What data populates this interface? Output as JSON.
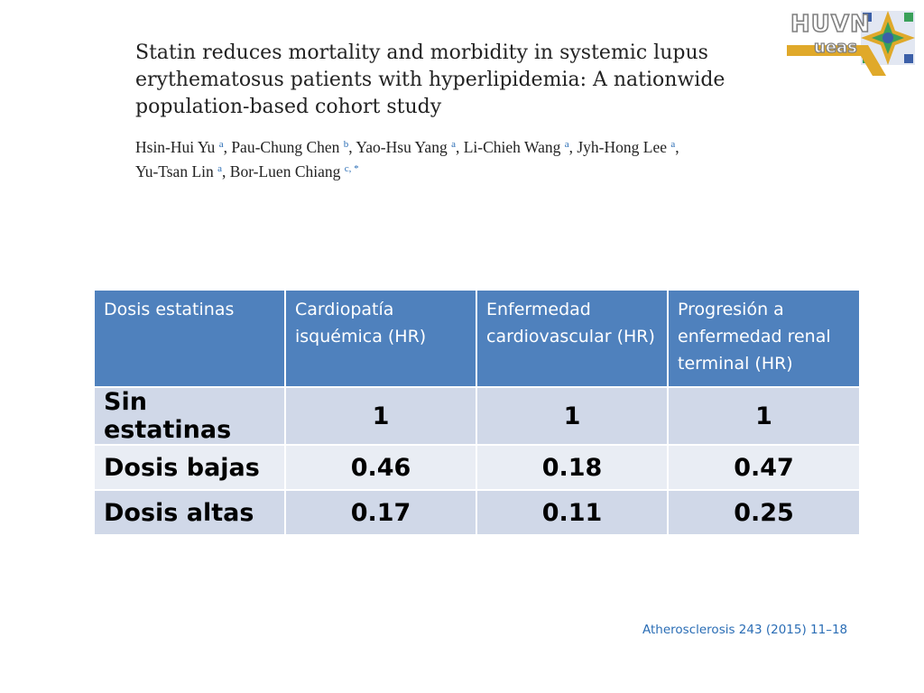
{
  "paper": {
    "title": "Statin reduces mortality and morbidity in systemic lupus erythematosus patients with hyperlipidemia: A nationwide population-based cohort study",
    "authors": [
      {
        "name": "Hsin-Hui Yu",
        "sup": "a"
      },
      {
        "name": "Pau-Chung Chen",
        "sup": "b"
      },
      {
        "name": "Yao-Hsu Yang",
        "sup": "a"
      },
      {
        "name": "Li-Chieh Wang",
        "sup": "a"
      },
      {
        "name": "Jyh-Hong Lee",
        "sup": "a"
      },
      {
        "name": "Yu-Tsan Lin",
        "sup": "a"
      },
      {
        "name": "Bor-Luen Chiang",
        "sup": "c, *"
      }
    ]
  },
  "logo": {
    "main": "HUVN",
    "sub": "ueas"
  },
  "table": {
    "headers": [
      "Dosis estatinas",
      "Cardiopatía isquémica (HR)",
      "Enfermedad cardiovascular (HR)",
      "Progresión a enfermedad renal terminal (HR)"
    ],
    "rows": [
      {
        "label": "Sin estatinas",
        "values": [
          "1",
          "1",
          "1"
        ]
      },
      {
        "label": "Dosis bajas",
        "values": [
          "0.46",
          "0.18",
          "0.47"
        ]
      },
      {
        "label": "Dosis altas",
        "values": [
          "0.17",
          "0.11",
          "0.25"
        ]
      }
    ]
  },
  "citation": "Atherosclerosis 243 (2015) 11–18",
  "colors": {
    "header_bg": "#4f81bd",
    "row_dark": "#d0d8e8",
    "row_light": "#e9edf4",
    "link_blue": "#2a6db5"
  }
}
